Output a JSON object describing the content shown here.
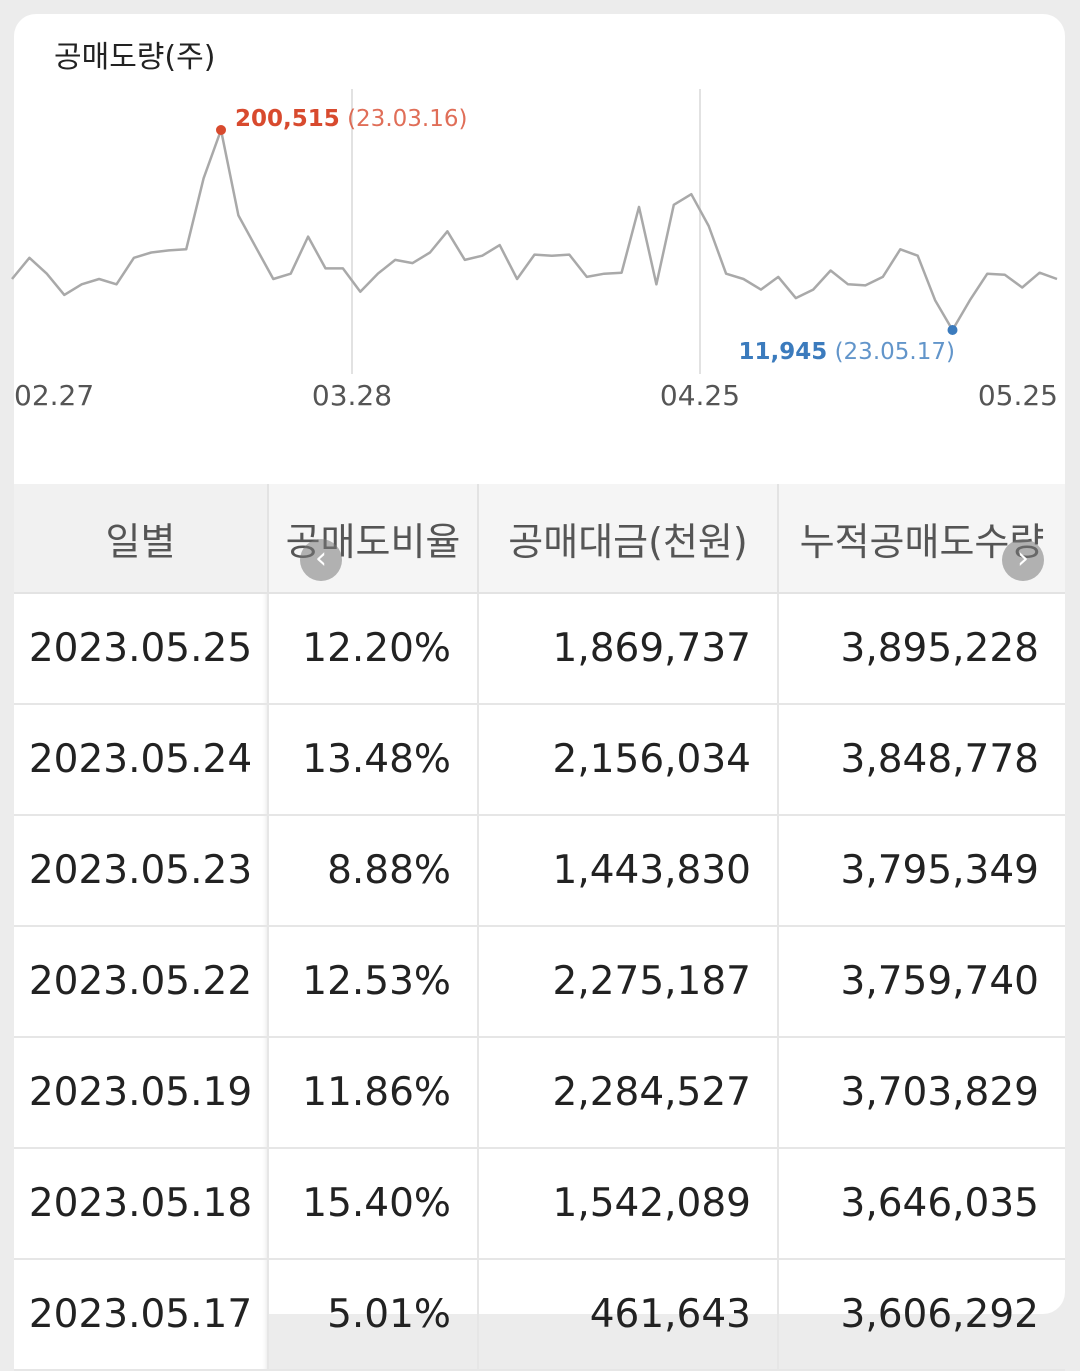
{
  "chart_data": {
    "type": "line",
    "title": "공매도량(주)",
    "x_ticks": [
      "02.27",
      "03.28",
      "04.25",
      "05.25"
    ],
    "series": [
      {
        "values": [
          60000,
          80000,
          65000,
          45000,
          55000,
          60000,
          55000,
          80000,
          85000,
          87000,
          88000,
          155000,
          200515,
          120000,
          90000,
          60000,
          65000,
          100000,
          70000,
          70000,
          48000,
          65000,
          78000,
          75000,
          85000,
          105000,
          78000,
          82000,
          92000,
          60000,
          83000,
          82000,
          83000,
          62000,
          65000,
          66000,
          128000,
          55000,
          130000,
          140000,
          110000,
          65000,
          60000,
          50000,
          62000,
          42000,
          50000,
          68000,
          55000,
          54000,
          62000,
          88000,
          82000,
          40000,
          11945,
          40000,
          65000,
          64000,
          52000,
          66000,
          60000
        ]
      }
    ],
    "max_point": {
      "value_label": "200,515",
      "date_label": "(23.03.16)"
    },
    "min_point": {
      "value_label": "11,945",
      "date_label": "(23.05.17)"
    },
    "colors": {
      "line": "#a9a9a9",
      "max": "#d84a2e",
      "min": "#3b7bbd",
      "grid": "#e2e2e2",
      "axis_label": "#555555"
    }
  },
  "table": {
    "headers": [
      "일별",
      "공매도비율",
      "공매대금(천원)",
      "누적공매도수량"
    ],
    "rows": [
      [
        "2023.05.25",
        "12.20%",
        "1,869,737",
        "3,895,228"
      ],
      [
        "2023.05.24",
        "13.48%",
        "2,156,034",
        "3,848,778"
      ],
      [
        "2023.05.23",
        "8.88%",
        "1,443,830",
        "3,795,349"
      ],
      [
        "2023.05.22",
        "12.53%",
        "2,275,187",
        "3,759,740"
      ],
      [
        "2023.05.19",
        "11.86%",
        "2,284,527",
        "3,703,829"
      ],
      [
        "2023.05.18",
        "15.40%",
        "1,542,089",
        "3,646,035"
      ],
      [
        "2023.05.17",
        "5.01%",
        "461,643",
        "3,606,292"
      ]
    ],
    "scroll_left_icon": "chevron-left-icon",
    "scroll_right_icon": "chevron-right-icon"
  }
}
